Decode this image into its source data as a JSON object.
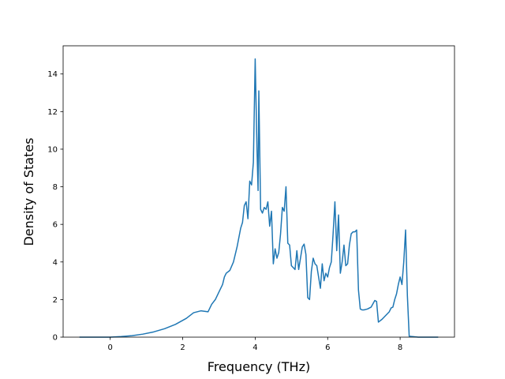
{
  "chart_data": {
    "type": "line",
    "title": "",
    "xlabel": "Frequency (THz)",
    "ylabel": "Density of States",
    "xlim": [
      -1.3,
      9.5
    ],
    "ylim": [
      0,
      15.5
    ],
    "xticks": [
      0,
      2,
      4,
      6,
      8
    ],
    "yticks": [
      0,
      2,
      4,
      6,
      8,
      10,
      12,
      14
    ],
    "grid": false,
    "legend": "none",
    "colors": {
      "line": "#1f77b4",
      "axes": "#000000"
    },
    "series": [
      {
        "x": [
          -0.85,
          0.0,
          0.3,
          0.6,
          0.9,
          1.2,
          1.5,
          1.8,
          2.1,
          2.3,
          2.5,
          2.7,
          2.75,
          2.8,
          2.9,
          3.0,
          3.1,
          3.15,
          3.2,
          3.3,
          3.4,
          3.5,
          3.6,
          3.65,
          3.7,
          3.75,
          3.8,
          3.85,
          3.9,
          3.95,
          4.0,
          4.05,
          4.08,
          4.1,
          4.15,
          4.2,
          4.25,
          4.3,
          4.35,
          4.4,
          4.45,
          4.5,
          4.55,
          4.6,
          4.65,
          4.7,
          4.75,
          4.8,
          4.85,
          4.9,
          4.95,
          5.0,
          5.1,
          5.15,
          5.2,
          5.25,
          5.3,
          5.35,
          5.4,
          5.45,
          5.5,
          5.55,
          5.6,
          5.65,
          5.7,
          5.75,
          5.8,
          5.85,
          5.9,
          5.95,
          6.0,
          6.05,
          6.1,
          6.15,
          6.2,
          6.25,
          6.3,
          6.35,
          6.4,
          6.45,
          6.5,
          6.55,
          6.6,
          6.65,
          6.7,
          6.75,
          6.8,
          6.85,
          6.9,
          6.95,
          7.0,
          7.1,
          7.2,
          7.3,
          7.35,
          7.4,
          7.5,
          7.6,
          7.7,
          7.75,
          7.8,
          7.85,
          7.9,
          7.95,
          8.0,
          8.05,
          8.1,
          8.15,
          8.2,
          8.25,
          8.5,
          9.05
        ],
        "y": [
          0.0,
          0.0,
          0.03,
          0.08,
          0.16,
          0.28,
          0.45,
          0.68,
          1.0,
          1.3,
          1.4,
          1.35,
          1.55,
          1.75,
          2.0,
          2.4,
          2.8,
          3.2,
          3.4,
          3.55,
          4.0,
          4.8,
          5.8,
          6.1,
          7.0,
          7.2,
          6.3,
          8.3,
          8.1,
          9.3,
          14.8,
          10.0,
          7.8,
          13.1,
          6.8,
          6.6,
          6.9,
          6.8,
          7.2,
          5.9,
          6.7,
          3.9,
          4.7,
          4.2,
          4.5,
          5.5,
          6.9,
          6.7,
          8.0,
          5.0,
          4.9,
          3.8,
          3.6,
          4.6,
          3.6,
          4.2,
          4.8,
          4.95,
          4.4,
          2.1,
          2.0,
          3.5,
          4.2,
          3.9,
          3.8,
          3.2,
          2.6,
          3.9,
          3.0,
          3.4,
          3.2,
          3.7,
          4.0,
          5.5,
          7.2,
          4.6,
          6.5,
          3.4,
          4.0,
          4.9,
          3.8,
          3.9,
          4.9,
          5.5,
          5.6,
          5.6,
          5.7,
          2.5,
          1.5,
          1.45,
          1.45,
          1.5,
          1.6,
          1.95,
          1.9,
          0.8,
          0.95,
          1.15,
          1.35,
          1.55,
          1.6,
          2.0,
          2.3,
          2.8,
          3.2,
          2.8,
          4.0,
          5.7,
          2.2,
          0.05,
          0.0,
          0.0
        ]
      }
    ]
  }
}
